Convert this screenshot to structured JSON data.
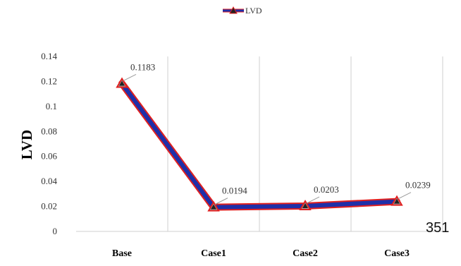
{
  "page_number": "351",
  "chart_data": {
    "type": "line",
    "categories": [
      "Base",
      "Case1",
      "Case2",
      "Case3"
    ],
    "series": [
      {
        "name": "LVD",
        "values": [
          0.1183,
          0.0194,
          0.0203,
          0.0239
        ]
      }
    ],
    "data_labels": [
      "0.1183",
      "0.0194",
      "0.0203",
      "0.0239"
    ],
    "title": "",
    "xlabel": "",
    "ylabel": "LVD",
    "ylim": [
      0,
      0.14
    ],
    "yticks": [
      "0",
      "0.02",
      "0.04",
      "0.06",
      "0.08",
      "0.1",
      "0.12",
      "0.14"
    ],
    "grid": "vertical",
    "legend": "top-center",
    "colors": {
      "line": "#1f2fa8",
      "outline": "#e02020",
      "grid": "#cfcfcf",
      "marker_fill": "#a9a9a9"
    }
  }
}
